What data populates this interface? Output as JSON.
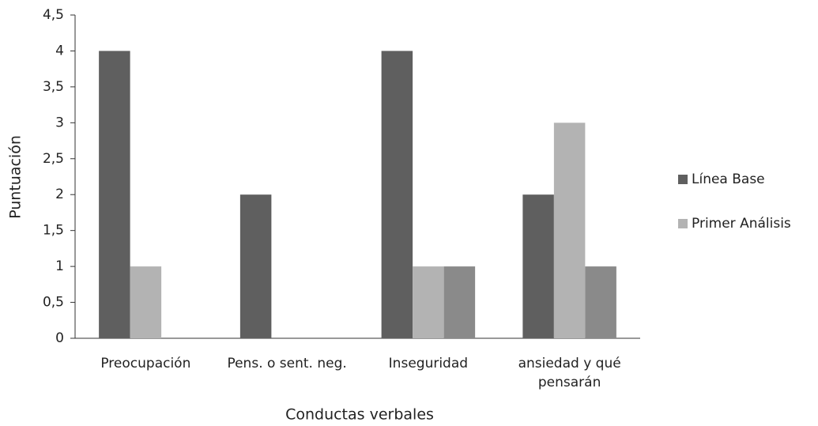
{
  "chart_data": {
    "type": "bar",
    "x_label": "Conductas verbales",
    "y_label": "Puntuación",
    "categories": [
      "Preocupación",
      "Pens. o sent. neg.",
      "Inseguridad",
      "ansiedad y qué pensarán"
    ],
    "series": [
      {
        "name": "Línea Base",
        "color": "#5f5f5f",
        "values": [
          4,
          2,
          4,
          2
        ]
      },
      {
        "name": "Primer Análisis",
        "color": "#b3b3b3",
        "values": [
          1,
          0,
          1,
          3
        ]
      },
      {
        "color": "#8a8a8a",
        "values": [
          0,
          0,
          1,
          1
        ]
      }
    ],
    "ylim": [
      0,
      4.5
    ],
    "yticks": [
      0,
      {
        "value": 0.5,
        "label": "0,5"
      },
      1,
      {
        "value": 1.5,
        "label": "1,5"
      },
      2,
      {
        "value": 2.5,
        "label": "2,5"
      },
      3,
      {
        "value": 3.5,
        "label": "3,5"
      },
      4,
      {
        "value": 4.5,
        "label": "4,5"
      }
    ],
    "grid": false,
    "legend": "right"
  }
}
